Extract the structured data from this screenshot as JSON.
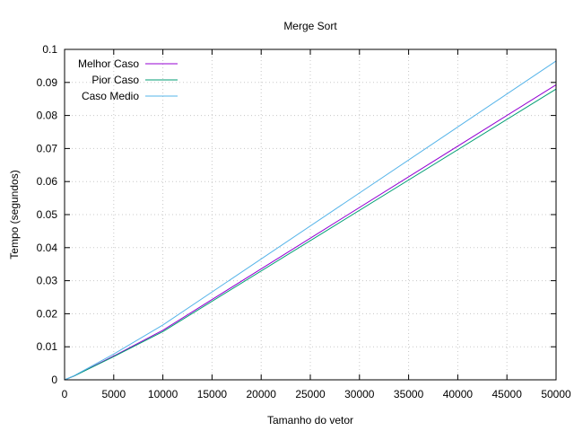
{
  "chart_data": {
    "type": "line",
    "title": "Merge Sort",
    "xlabel": "Tamanho do vetor",
    "ylabel": "Tempo (segundos)",
    "xlim": [
      0,
      50000
    ],
    "ylim": [
      0,
      0.1
    ],
    "x_ticks": [
      "0",
      "5000",
      "10000",
      "15000",
      "20000",
      "25000",
      "30000",
      "35000",
      "40000",
      "45000",
      "50000"
    ],
    "y_ticks": [
      "0",
      "0.01",
      "0.02",
      "0.03",
      "0.04",
      "0.05",
      "0.06",
      "0.07",
      "0.08",
      "0.09",
      "0.1"
    ],
    "grid": true,
    "legend_position": "top-left",
    "series": [
      {
        "name": "Melhor Caso",
        "color": "#9400d3",
        "x": [
          0,
          1000,
          5000,
          10000,
          50000
        ],
        "y": [
          0,
          0.0012,
          0.0072,
          0.015,
          0.0893
        ]
      },
      {
        "name": "Pior Caso",
        "color": "#009e73",
        "x": [
          0,
          1000,
          5000,
          10000,
          50000
        ],
        "y": [
          0,
          0.0012,
          0.007,
          0.0146,
          0.088
        ]
      },
      {
        "name": "Caso Medio",
        "color": "#56b4e9",
        "x": [
          0,
          1000,
          5000,
          10000,
          50000
        ],
        "y": [
          0,
          0.0013,
          0.0078,
          0.0166,
          0.0965
        ]
      }
    ]
  }
}
